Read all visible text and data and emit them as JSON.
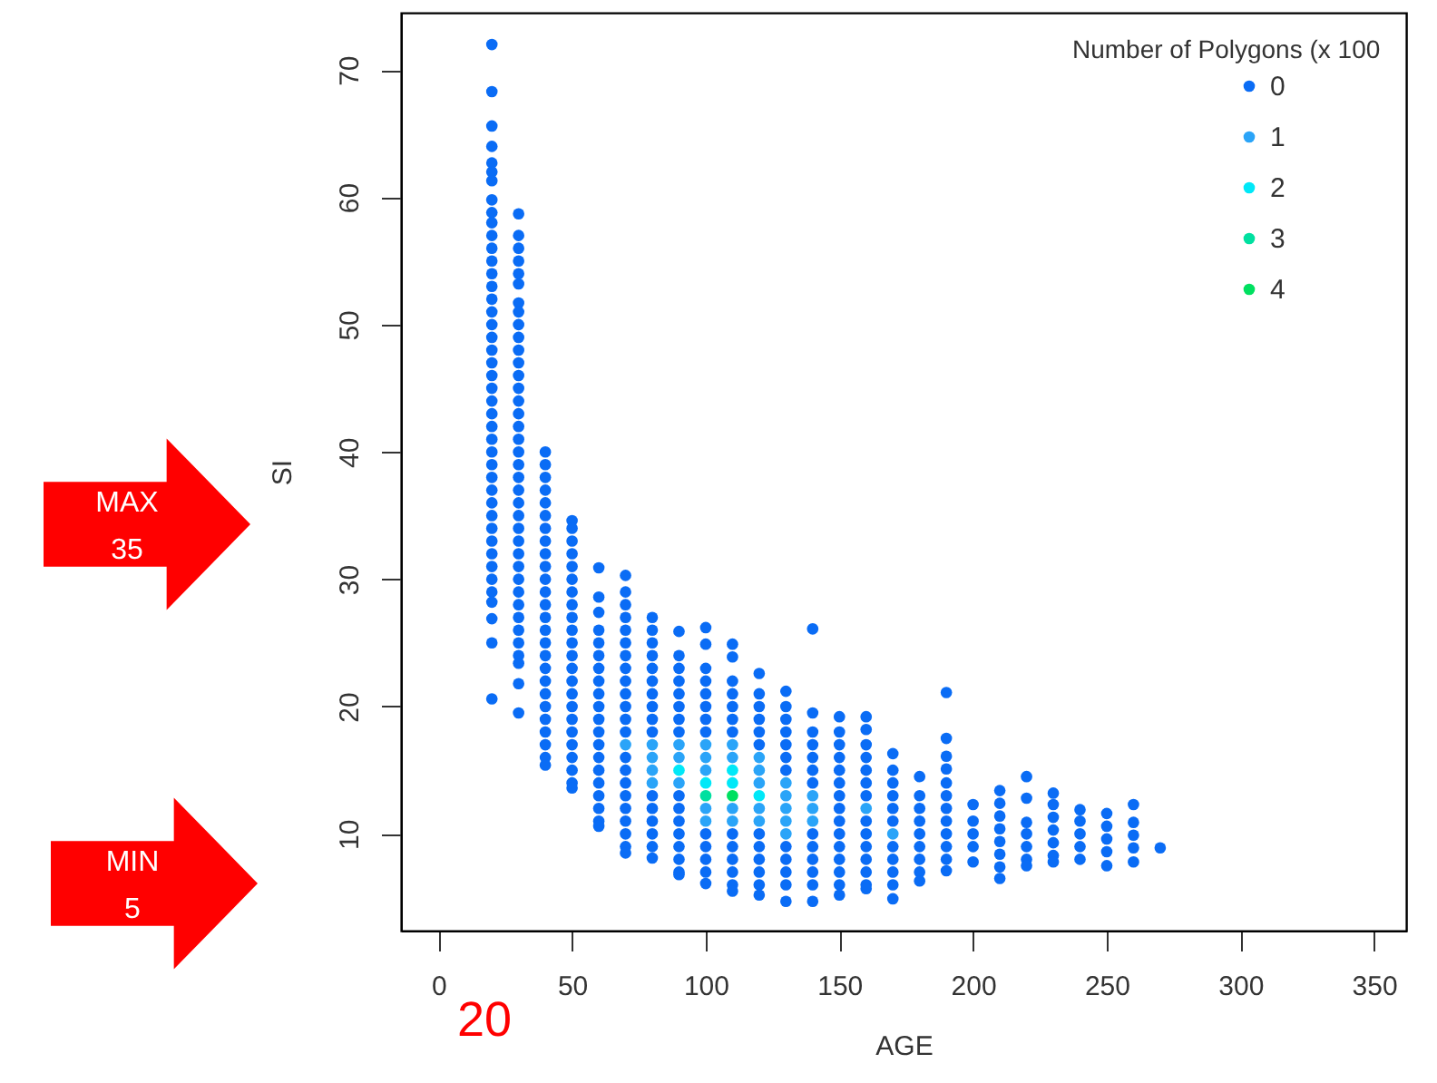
{
  "chart_data": {
    "type": "scatter",
    "xlabel": "AGE",
    "ylabel": "SI",
    "legend_title": "Number of Polygons (x 100",
    "xlim": [
      -14,
      362
    ],
    "ylim": [
      2.4,
      74.5
    ],
    "xticks": [
      0,
      50,
      100,
      150,
      200,
      250,
      300,
      350
    ],
    "yticks": [
      10,
      20,
      30,
      40,
      50,
      60,
      70
    ],
    "grid": false,
    "legend": "top right",
    "marker": "circle",
    "annotations": [
      "MAX 35",
      "MIN 5",
      "20"
    ],
    "series": [
      {
        "name": "0",
        "color": "#0a6cf5",
        "x": [
          20,
          20,
          20,
          20,
          20,
          20,
          20,
          20,
          20,
          20,
          20,
          20,
          20,
          20,
          20,
          20,
          20,
          20,
          20,
          20,
          20,
          20,
          20,
          20,
          20,
          20,
          20,
          20,
          20,
          20,
          20,
          20,
          20,
          20,
          20,
          20,
          20,
          20,
          20,
          20,
          20,
          20,
          20,
          30,
          30,
          30,
          30,
          30,
          30,
          30,
          30,
          30,
          30,
          30,
          30,
          30,
          30,
          30,
          30,
          30,
          30,
          30,
          30,
          30,
          30,
          30,
          30,
          30,
          30,
          30,
          30,
          30,
          30,
          30,
          30,
          30,
          30,
          30,
          30,
          30,
          30,
          40,
          40,
          40,
          40,
          40,
          40,
          40,
          40,
          40,
          40,
          40,
          40,
          40,
          40,
          40,
          40,
          40,
          40,
          40,
          40,
          40,
          40,
          40,
          40,
          40,
          40,
          50,
          50,
          50,
          50,
          50,
          50,
          50,
          50,
          50,
          50,
          50,
          50,
          50,
          50,
          50,
          50,
          50,
          50,
          50,
          50,
          50,
          50,
          50,
          60,
          60,
          60,
          60,
          60,
          60,
          60,
          60,
          60,
          60,
          60,
          60,
          60,
          60,
          60,
          60,
          60,
          60,
          60,
          60,
          70,
          70,
          70,
          70,
          70,
          70,
          70,
          70,
          70,
          70,
          70,
          70,
          70,
          70,
          70,
          70,
          70,
          70,
          70,
          70,
          70,
          70,
          80,
          80,
          80,
          80,
          80,
          80,
          80,
          80,
          80,
          80,
          80,
          80,
          80,
          80,
          80,
          80,
          90,
          90,
          90,
          90,
          90,
          90,
          90,
          90,
          90,
          90,
          90,
          90,
          90,
          90,
          90,
          90,
          100,
          100,
          100,
          100,
          100,
          100,
          100,
          100,
          100,
          100,
          100,
          100,
          100,
          110,
          110,
          110,
          110,
          110,
          110,
          110,
          110,
          110,
          110,
          110,
          110,
          110,
          120,
          120,
          120,
          120,
          120,
          120,
          120,
          120,
          120,
          120,
          120,
          120,
          130,
          130,
          130,
          130,
          130,
          130,
          130,
          130,
          130,
          130,
          130,
          130,
          140,
          140,
          140,
          140,
          140,
          140,
          140,
          140,
          140,
          140,
          140,
          140,
          140,
          150,
          150,
          150,
          150,
          150,
          150,
          150,
          150,
          150,
          150,
          150,
          150,
          150,
          150,
          150,
          160,
          160,
          160,
          160,
          160,
          160,
          160,
          160,
          160,
          160,
          160,
          160,
          160,
          160,
          170,
          170,
          170,
          170,
          170,
          170,
          170,
          170,
          170,
          170,
          170,
          180,
          180,
          180,
          180,
          180,
          180,
          180,
          180,
          180,
          190,
          190,
          190,
          190,
          190,
          190,
          190,
          190,
          190,
          190,
          190,
          190,
          200,
          200,
          200,
          200,
          200,
          210,
          210,
          210,
          210,
          210,
          210,
          210,
          210,
          220,
          220,
          220,
          220,
          220,
          220,
          220,
          230,
          230,
          230,
          230,
          230,
          230,
          230,
          240,
          240,
          240,
          240,
          240,
          250,
          250,
          250,
          250,
          250,
          260,
          260,
          260,
          260,
          260,
          270
        ],
        "values": [
          72,
          68.3,
          65.6,
          64,
          62.7,
          62,
          61.3,
          59.8,
          58.8,
          58,
          57,
          56,
          55,
          54,
          53,
          52,
          51,
          50,
          49,
          48,
          47,
          46,
          45,
          44,
          43,
          42,
          41,
          40,
          39,
          38,
          37,
          36,
          35,
          34,
          33,
          32,
          31,
          30,
          29,
          28.2,
          26.9,
          25,
          20.6,
          58.7,
          57,
          56,
          55,
          54,
          53.2,
          51.7,
          51,
          50,
          49,
          48,
          47,
          46,
          45,
          44,
          43,
          42,
          41,
          40,
          39,
          38,
          37,
          36,
          35,
          34,
          33,
          32,
          31,
          30,
          29,
          28,
          27,
          26,
          25,
          24,
          23.4,
          21.8,
          19.5,
          40,
          39,
          38,
          37,
          36,
          35,
          34,
          33,
          32,
          31,
          30,
          29,
          28,
          27,
          26,
          25,
          24,
          23,
          22,
          21,
          20,
          19,
          18,
          17,
          16,
          15.4,
          34.6,
          34,
          33,
          32,
          31,
          30,
          29,
          28,
          27,
          26,
          25,
          24,
          23,
          22,
          21,
          20,
          19,
          18,
          17,
          16,
          15,
          14,
          13.6,
          30.9,
          28.6,
          27.4,
          26,
          25,
          24,
          23,
          22,
          21,
          20,
          19,
          18,
          17,
          16,
          15,
          14,
          13,
          12,
          11,
          10.6,
          30.3,
          29,
          28,
          27,
          26,
          25,
          24,
          23,
          22,
          21,
          20,
          19,
          18,
          16,
          15,
          14,
          13,
          12,
          11,
          10,
          9,
          8.5,
          27,
          26,
          25,
          24,
          23,
          22,
          21,
          20,
          19,
          18,
          13,
          12,
          11,
          10,
          9,
          8.1,
          25.9,
          24,
          23,
          22,
          21,
          20,
          19,
          18,
          13,
          12,
          11,
          10,
          9,
          8,
          7,
          6.8,
          26.2,
          24.9,
          23,
          22,
          21,
          20,
          19,
          18,
          10,
          9,
          8,
          7,
          6.1,
          24.9,
          23.9,
          22,
          21,
          20,
          19,
          18,
          10,
          9,
          8,
          7,
          6,
          5.5,
          22.6,
          21,
          20,
          19,
          18,
          17,
          10,
          9,
          8,
          7,
          6,
          5.2,
          21.2,
          20,
          19,
          18,
          17,
          16,
          15,
          9,
          8,
          7,
          6,
          4.7,
          26.1,
          19.5,
          18,
          17,
          16,
          15,
          14,
          10,
          9,
          8,
          7,
          6,
          4.7,
          19.2,
          18,
          17,
          16,
          15,
          14,
          13,
          12,
          11,
          10,
          9,
          8,
          7,
          6,
          5.2,
          19.2,
          18.2,
          17,
          16,
          15,
          14,
          13,
          11,
          10,
          9,
          8,
          7,
          6,
          5.7,
          16.3,
          15,
          14,
          13,
          12,
          11,
          9,
          8,
          7,
          6,
          4.9,
          14.5,
          13,
          12,
          11,
          10,
          9,
          8,
          7,
          6.3,
          21.1,
          17.5,
          16.1,
          15.1,
          14,
          13,
          12,
          11,
          10,
          9,
          8,
          7.1,
          12.3,
          11,
          10,
          9,
          7.8,
          13.4,
          12.4,
          11.4,
          10.4,
          9.4,
          8.4,
          7.4,
          6.5,
          14.5,
          12.8,
          10.9,
          10,
          9,
          8,
          7.5,
          13.2,
          12.3,
          11.3,
          10.3,
          9.3,
          8.3,
          7.8,
          11.9,
          11,
          10,
          9,
          8,
          11.6,
          10.6,
          9.6,
          8.6,
          7.5,
          12.3,
          10.9,
          9.9,
          8.9,
          7.8,
          8.9
        ]
      },
      {
        "name": "1",
        "color": "#2aa4f8",
        "x": [
          70,
          80,
          80,
          80,
          80,
          90,
          90,
          90,
          100,
          100,
          100,
          100,
          100,
          110,
          110,
          110,
          110,
          120,
          120,
          120,
          120,
          120,
          130,
          130,
          130,
          130,
          130,
          140,
          140,
          140,
          160,
          170
        ],
        "values": [
          17,
          17,
          16,
          15,
          14,
          17,
          16,
          14,
          17,
          16,
          15,
          12,
          11,
          17,
          16,
          12,
          11,
          16,
          15,
          14,
          12,
          11,
          14,
          13,
          12,
          11,
          10,
          13,
          12,
          11,
          12,
          10
        ]
      },
      {
        "name": "2",
        "color": "#00e8f8",
        "x": [
          90,
          100,
          110,
          110,
          120
        ],
        "values": [
          15,
          14,
          15,
          14,
          13
        ]
      },
      {
        "name": "3",
        "color": "#00e0a0",
        "x": [
          100
        ],
        "values": [
          13
        ]
      },
      {
        "name": "4",
        "color": "#00e060",
        "x": [
          110
        ],
        "values": [
          13
        ]
      }
    ]
  }
}
